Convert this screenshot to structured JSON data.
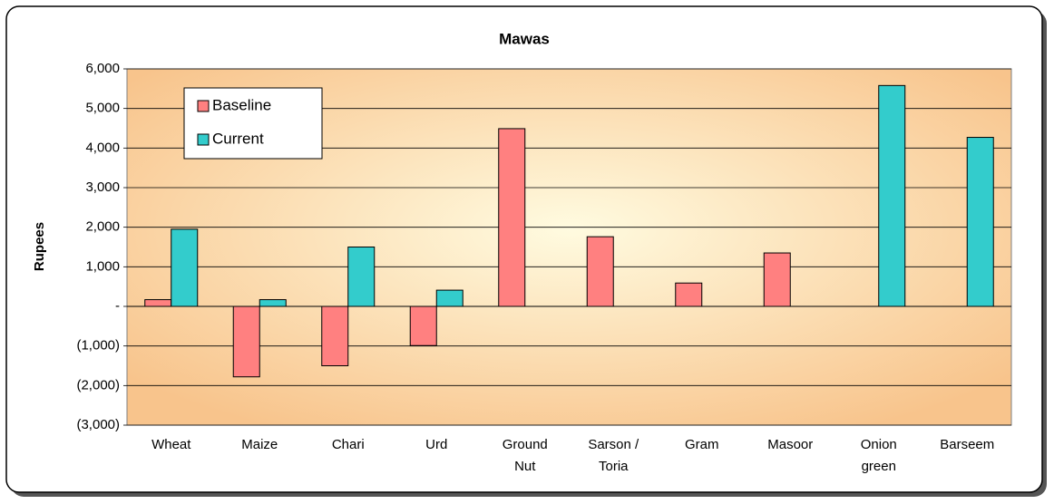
{
  "chart_data": {
    "type": "bar",
    "title": "Mawas",
    "y_label": "Rupees",
    "categories": [
      "Wheat",
      "Maize",
      "Chari",
      "Urd",
      "Ground Nut",
      "Sarson / Toria",
      "Gram",
      "Masoor",
      "Onion green",
      "Barseem"
    ],
    "series": [
      {
        "name": "Baseline",
        "color": "#ff8080",
        "values": [
          170,
          -1780,
          -1500,
          -990,
          4490,
          1760,
          590,
          1350,
          null,
          null
        ]
      },
      {
        "name": "Current",
        "color": "#33cccc",
        "values": [
          1950,
          170,
          1500,
          410,
          null,
          null,
          null,
          null,
          5580,
          4270
        ]
      }
    ],
    "ylim": [
      -3000,
      6000
    ],
    "yticks": [
      {
        "value": -3000,
        "label": "(3,000)"
      },
      {
        "value": -2000,
        "label": "(2,000)"
      },
      {
        "value": -1000,
        "label": "(1,000)"
      },
      {
        "value": 0,
        "label": "-"
      },
      {
        "value": 1000,
        "label": "1,000"
      },
      {
        "value": 2000,
        "label": "2,000"
      },
      {
        "value": 3000,
        "label": "3,000"
      },
      {
        "value": 4000,
        "label": "4,000"
      },
      {
        "value": 5000,
        "label": "5,000"
      },
      {
        "value": 6000,
        "label": "6,000"
      }
    ],
    "grid": true,
    "legend": "upper left"
  }
}
